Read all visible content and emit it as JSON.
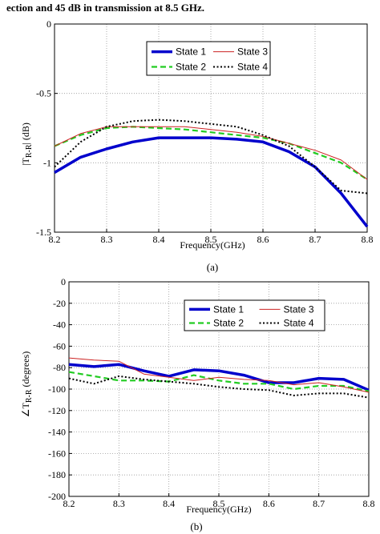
{
  "header_text": "ection and 45 dB in transmission at 8.5 GHz.",
  "chart_data": [
    {
      "type": "line",
      "xlabel": "Frequency(GHz)",
      "ylabel_main": "|T",
      "ylabel_sub": "R-R",
      "ylabel_tail": "| (dB)",
      "caption": "(a)",
      "xlim": [
        8.2,
        8.8
      ],
      "ylim": [
        -1.5,
        0
      ],
      "xticks": [
        8.2,
        8.3,
        8.4,
        8.5,
        8.6,
        8.7,
        8.8
      ],
      "yticks": [
        0,
        -0.5,
        -1,
        -1.5
      ],
      "grid": true,
      "legend_position": "top-center",
      "series": [
        {
          "name": "State 1",
          "color": "#0000cc",
          "style": "thick-solid",
          "x": [
            8.2,
            8.25,
            8.3,
            8.35,
            8.4,
            8.45,
            8.5,
            8.55,
            8.6,
            8.65,
            8.7,
            8.75,
            8.8
          ],
          "y": [
            -1.07,
            -0.96,
            -0.9,
            -0.85,
            -0.82,
            -0.82,
            -0.82,
            -0.83,
            -0.85,
            -0.92,
            -1.03,
            -1.22,
            -1.46
          ]
        },
        {
          "name": "State 2",
          "color": "#22cc22",
          "style": "dashed",
          "x": [
            8.2,
            8.25,
            8.3,
            8.35,
            8.4,
            8.45,
            8.5,
            8.55,
            8.6,
            8.65,
            8.7,
            8.75,
            8.8
          ],
          "y": [
            -0.88,
            -0.8,
            -0.75,
            -0.74,
            -0.75,
            -0.76,
            -0.78,
            -0.8,
            -0.82,
            -0.86,
            -0.93,
            -1.0,
            -1.12
          ]
        },
        {
          "name": "State 3",
          "color": "#cc2222",
          "style": "thin-solid",
          "x": [
            8.2,
            8.25,
            8.3,
            8.35,
            8.4,
            8.45,
            8.5,
            8.55,
            8.6,
            8.65,
            8.7,
            8.75,
            8.8
          ],
          "y": [
            -0.88,
            -0.79,
            -0.74,
            -0.74,
            -0.74,
            -0.74,
            -0.76,
            -0.78,
            -0.81,
            -0.86,
            -0.91,
            -0.98,
            -1.12
          ]
        },
        {
          "name": "State 4",
          "color": "#000000",
          "style": "dotted",
          "x": [
            8.2,
            8.25,
            8.3,
            8.35,
            8.4,
            8.45,
            8.5,
            8.55,
            8.6,
            8.65,
            8.7,
            8.75,
            8.8
          ],
          "y": [
            -1.03,
            -0.85,
            -0.74,
            -0.7,
            -0.69,
            -0.7,
            -0.72,
            -0.74,
            -0.8,
            -0.88,
            -1.03,
            -1.2,
            -1.22
          ]
        }
      ]
    },
    {
      "type": "line",
      "xlabel": "Frequency(GHz)",
      "ylabel_main": "∠T",
      "ylabel_sub": "R-R",
      "ylabel_tail": " (degrees)",
      "caption": "(b)",
      "xlim": [
        8.2,
        8.8
      ],
      "ylim": [
        -200,
        0
      ],
      "xticks": [
        8.2,
        8.3,
        8.4,
        8.5,
        8.6,
        8.7,
        8.8
      ],
      "yticks": [
        0,
        -20,
        -40,
        -60,
        -80,
        -100,
        -120,
        -140,
        -160,
        -180,
        -200
      ],
      "grid": true,
      "legend_position": "top-center",
      "series": [
        {
          "name": "State 1",
          "color": "#0000cc",
          "style": "thick-solid",
          "x": [
            8.2,
            8.25,
            8.3,
            8.35,
            8.4,
            8.45,
            8.5,
            8.55,
            8.6,
            8.65,
            8.7,
            8.75,
            8.8
          ],
          "y": [
            -77,
            -79,
            -77,
            -83,
            -88,
            -82,
            -83,
            -87,
            -94,
            -94,
            -90,
            -91,
            -101
          ]
        },
        {
          "name": "State 2",
          "color": "#22cc22",
          "style": "dashed",
          "x": [
            8.2,
            8.25,
            8.3,
            8.35,
            8.4,
            8.45,
            8.5,
            8.55,
            8.6,
            8.65,
            8.7,
            8.75,
            8.8
          ],
          "y": [
            -84,
            -88,
            -92,
            -92,
            -93,
            -87,
            -92,
            -95,
            -95,
            -100,
            -97,
            -97,
            -102
          ]
        },
        {
          "name": "State 3",
          "color": "#cc2222",
          "style": "thin-solid",
          "x": [
            8.2,
            8.25,
            8.3,
            8.35,
            8.4,
            8.45,
            8.5,
            8.55,
            8.6,
            8.65,
            8.7,
            8.75,
            8.8
          ],
          "y": [
            -71,
            -73,
            -74,
            -86,
            -89,
            -92,
            -89,
            -91,
            -92,
            -96,
            -94,
            -98,
            -103
          ]
        },
        {
          "name": "State 4",
          "color": "#000000",
          "style": "dotted",
          "x": [
            8.2,
            8.25,
            8.3,
            8.35,
            8.4,
            8.45,
            8.5,
            8.55,
            8.6,
            8.65,
            8.7,
            8.75,
            8.8
          ],
          "y": [
            -90,
            -95,
            -88,
            -91,
            -93,
            -95,
            -98,
            -100,
            -101,
            -106,
            -104,
            -104,
            -108
          ]
        }
      ]
    }
  ]
}
